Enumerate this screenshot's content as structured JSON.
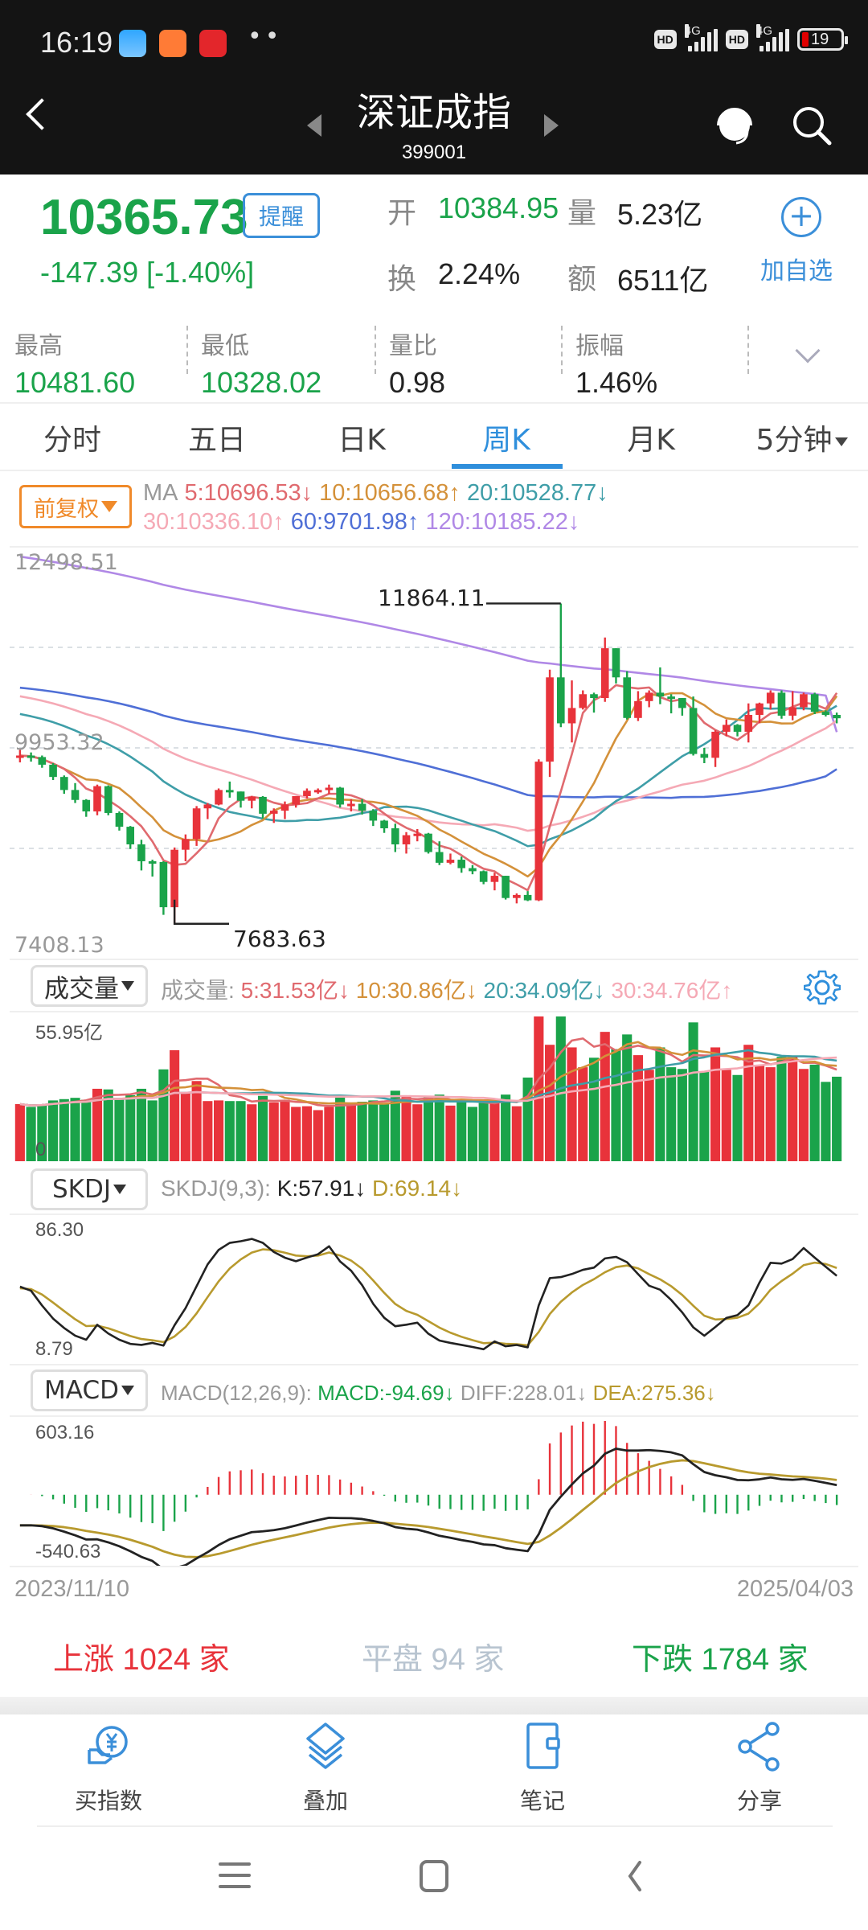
{
  "status_bar": {
    "time": "16:19",
    "app_icons": [
      "weather-app-icon",
      "mi-store-icon",
      "red-app-icon"
    ],
    "overflow": "••",
    "network_1": "4G",
    "network_2": "4G",
    "hd_label": "HD",
    "battery": "19"
  },
  "header": {
    "title": "深证成指",
    "code": "399001"
  },
  "quote": {
    "price": "10365.73",
    "remind_label": "提醒",
    "change": "-147.39  [-1.40%]",
    "open_label": "开",
    "open_value": "10384.95",
    "volume_label": "量",
    "volume_value": "5.23亿",
    "turnover_label": "换",
    "turnover_value": "2.24%",
    "amount_label": "额",
    "amount_value": "6511亿",
    "add_watch_label": "加自选",
    "stats": [
      {
        "label": "最高",
        "value": "10481.60",
        "color": "#1aa34a"
      },
      {
        "label": "最低",
        "value": "10328.02",
        "color": "#1aa34a"
      },
      {
        "label": "量比",
        "value": "0.98",
        "color": "#222222"
      },
      {
        "label": "振幅",
        "value": "1.46%",
        "color": "#222222"
      }
    ]
  },
  "tabs": [
    {
      "label": "分时",
      "active": false
    },
    {
      "label": "五日",
      "active": false
    },
    {
      "label": "日K",
      "active": false
    },
    {
      "label": "周K",
      "active": true
    },
    {
      "label": "月K",
      "active": false
    },
    {
      "label": "5分钟",
      "active": false
    }
  ],
  "ma_legend": {
    "adjust_label": "前复权",
    "prefix": "MA",
    "items": [
      {
        "text": "5:10696.53↓",
        "color": "#e06a6f"
      },
      {
        "text": "10:10656.68↑",
        "color": "#d4913a"
      },
      {
        "text": "20:10528.77↓",
        "color": "#3f9ea8"
      },
      {
        "text": "30:10336.10↑",
        "color": "#f5a9b5"
      },
      {
        "text": "60:9701.98↑",
        "color": "#4f6fd6"
      },
      {
        "text": "120:10185.22↓",
        "color": "#b088e6"
      }
    ]
  },
  "volume_legend": {
    "button_label": "成交量",
    "prefix": "成交量:",
    "items": [
      {
        "text": "5:31.53亿↓",
        "color": "#e06a6f"
      },
      {
        "text": "10:30.86亿↓",
        "color": "#d4913a"
      },
      {
        "text": "20:34.09亿↓",
        "color": "#3f9ea8"
      },
      {
        "text": "30:34.76亿↑",
        "color": "#f5a9b5"
      }
    ]
  },
  "skdj_legend": {
    "button_label": "SKDJ",
    "prefix": "SKDJ(9,3):",
    "k": "K:57.91↓",
    "d": "D:69.14↓"
  },
  "macd_legend": {
    "button_label": "MACD",
    "prefix": "MACD(12,26,9):",
    "macd": "MACD:-94.69↓",
    "diff": "DIFF:228.01↓",
    "dea": "DEA:275.36↓"
  },
  "breadth": {
    "up": "上涨 1024 家",
    "flat": "平盘 94 家",
    "down": "下跌 1784 家"
  },
  "bottom_nav": [
    {
      "label": "买指数",
      "icon": "buy-index-icon"
    },
    {
      "label": "叠加",
      "icon": "layers-icon"
    },
    {
      "label": "笔记",
      "icon": "notebook-icon"
    },
    {
      "label": "分享",
      "icon": "share-icon"
    }
  ],
  "colors": {
    "up": "#e8333b",
    "down": "#1aa34a",
    "accent": "#2f8fdc"
  },
  "chart_data": [
    {
      "type": "candlestick",
      "title": "深证成指 周K (前复权)",
      "x_start": "2023/11/10",
      "x_end": "2025/04/03",
      "y_axis_labels": [
        "12498.51",
        "9953.32",
        "7408.13"
      ],
      "ylim": [
        7408.13,
        12498.51
      ],
      "annotations": [
        {
          "label": "11864.11",
          "type": "max_high"
        },
        {
          "label": "7683.63",
          "type": "min_low"
        }
      ],
      "grid": true,
      "ohlc": [
        [
          9850,
          9953,
          9790,
          9880
        ],
        [
          9880,
          9920,
          9800,
          9860
        ],
        [
          9860,
          9880,
          9720,
          9760
        ],
        [
          9760,
          9780,
          9560,
          9600
        ],
        [
          9600,
          9620,
          9380,
          9430
        ],
        [
          9430,
          9520,
          9260,
          9300
        ],
        [
          9300,
          9310,
          9080,
          9150
        ],
        [
          9150,
          9500,
          9100,
          9480
        ],
        [
          9480,
          9490,
          9100,
          9130
        ],
        [
          9130,
          9150,
          8900,
          8950
        ],
        [
          8950,
          8960,
          8660,
          8720
        ],
        [
          8720,
          8780,
          8380,
          8500
        ],
        [
          8500,
          8520,
          8300,
          8490
        ],
        [
          8490,
          8500,
          7800,
          7900
        ],
        [
          7900,
          8680,
          7683.63,
          8650
        ],
        [
          8650,
          8850,
          8500,
          8790
        ],
        [
          8790,
          9220,
          8700,
          9190
        ],
        [
          9190,
          9260,
          9050,
          9240
        ],
        [
          9240,
          9450,
          9230,
          9430
        ],
        [
          9430,
          9540,
          9330,
          9410
        ],
        [
          9410,
          9410,
          9200,
          9290
        ],
        [
          9290,
          9350,
          9190,
          9340
        ],
        [
          9340,
          9350,
          9060,
          9120
        ],
        [
          9120,
          9190,
          9000,
          9160
        ],
        [
          9160,
          9280,
          9050,
          9240
        ],
        [
          9240,
          9320,
          9200,
          9350
        ],
        [
          9350,
          9450,
          9320,
          9420
        ],
        [
          9420,
          9450,
          9380,
          9430
        ],
        [
          9430,
          9500,
          9380,
          9460
        ],
        [
          9460,
          9470,
          9200,
          9240
        ],
        [
          9240,
          9310,
          9150,
          9250
        ],
        [
          9250,
          9310,
          9110,
          9160
        ],
        [
          9160,
          9180,
          8960,
          9030
        ],
        [
          9030,
          9040,
          8870,
          8930
        ],
        [
          8930,
          8990,
          8620,
          8720
        ],
        [
          8720,
          8880,
          8600,
          8840
        ],
        [
          8840,
          8920,
          8760,
          8860
        ],
        [
          8860,
          8870,
          8600,
          8620
        ],
        [
          8620,
          8760,
          8450,
          8480
        ],
        [
          8480,
          8600,
          8460,
          8520
        ],
        [
          8520,
          8560,
          8350,
          8410
        ],
        [
          8410,
          8450,
          8330,
          8370
        ],
        [
          8370,
          8380,
          8200,
          8230
        ],
        [
          8230,
          8350,
          8120,
          8310
        ],
        [
          8310,
          8310,
          8000,
          8020
        ],
        [
          8020,
          8080,
          7950,
          8060
        ],
        [
          8060,
          8110,
          7980,
          7990
        ],
        [
          7990,
          9830,
          7980,
          9800
        ],
        [
          9800,
          11000,
          9600,
          10900
        ],
        [
          10900,
          11864.11,
          10250,
          10300
        ],
        [
          10300,
          10860,
          10050,
          10500
        ],
        [
          10500,
          10730,
          10480,
          10680
        ],
        [
          10680,
          10700,
          10440,
          10630
        ],
        [
          10630,
          11420,
          10580,
          11280
        ],
        [
          11280,
          11280,
          10820,
          10900
        ],
        [
          10900,
          10980,
          10350,
          10370
        ],
        [
          10370,
          10720,
          10330,
          10590
        ],
        [
          10590,
          10730,
          10510,
          10700
        ],
        [
          10700,
          11030,
          10550,
          10650
        ],
        [
          10650,
          10680,
          10430,
          10630
        ],
        [
          10630,
          10630,
          10400,
          10500
        ],
        [
          10500,
          10650,
          9880,
          9900
        ],
        [
          9900,
          9980,
          9780,
          9850
        ],
        [
          9850,
          10210,
          9730,
          10190
        ],
        [
          10190,
          10350,
          10130,
          10280
        ],
        [
          10280,
          10290,
          10130,
          10190
        ],
        [
          10190,
          10560,
          10050,
          10410
        ],
        [
          10410,
          10570,
          10300,
          10560
        ],
        [
          10560,
          10730,
          10480,
          10700
        ],
        [
          10700,
          10730,
          10360,
          10400
        ],
        [
          10400,
          10720,
          10340,
          10510
        ],
        [
          10510,
          10700,
          10470,
          10680
        ],
        [
          10680,
          10700,
          10420,
          10450
        ],
        [
          10450,
          10470,
          10390,
          10410
        ],
        [
          10410,
          10440,
          10300,
          10366
        ]
      ],
      "ma_series": [
        {
          "name": "MA5",
          "color": "#e06a6f",
          "last": 10696.53
        },
        {
          "name": "MA10",
          "color": "#d4913a",
          "last": 10656.68
        },
        {
          "name": "MA20",
          "color": "#3f9ea8",
          "last": 10528.77
        },
        {
          "name": "MA30",
          "color": "#f5a9b5",
          "last": 10336.1
        },
        {
          "name": "MA60",
          "color": "#4f6fd6",
          "last": 9701.98
        },
        {
          "name": "MA120",
          "color": "#b088e6",
          "last": 10185.22
        }
      ]
    },
    {
      "type": "bar",
      "title": "成交量",
      "y_axis_labels": [
        "55.95亿",
        "0"
      ],
      "ylim": [
        0,
        55.95
      ],
      "unit": "亿"
    },
    {
      "type": "line",
      "title": "SKDJ(9,3)",
      "y_axis_labels": [
        "86.30",
        "8.79"
      ],
      "series": [
        {
          "name": "K",
          "color": "#222222",
          "last": 57.91
        },
        {
          "name": "D",
          "color": "#b89a2e",
          "last": 69.14
        }
      ]
    },
    {
      "type": "bar",
      "title": "MACD(12,26,9)",
      "y_axis_labels": [
        "603.16",
        "-540.63"
      ],
      "series": [
        {
          "name": "MACD",
          "last": -94.69
        },
        {
          "name": "DIFF",
          "color": "#222222",
          "last": 228.01
        },
        {
          "name": "DEA",
          "color": "#b89a2e",
          "last": 275.36
        }
      ]
    }
  ]
}
